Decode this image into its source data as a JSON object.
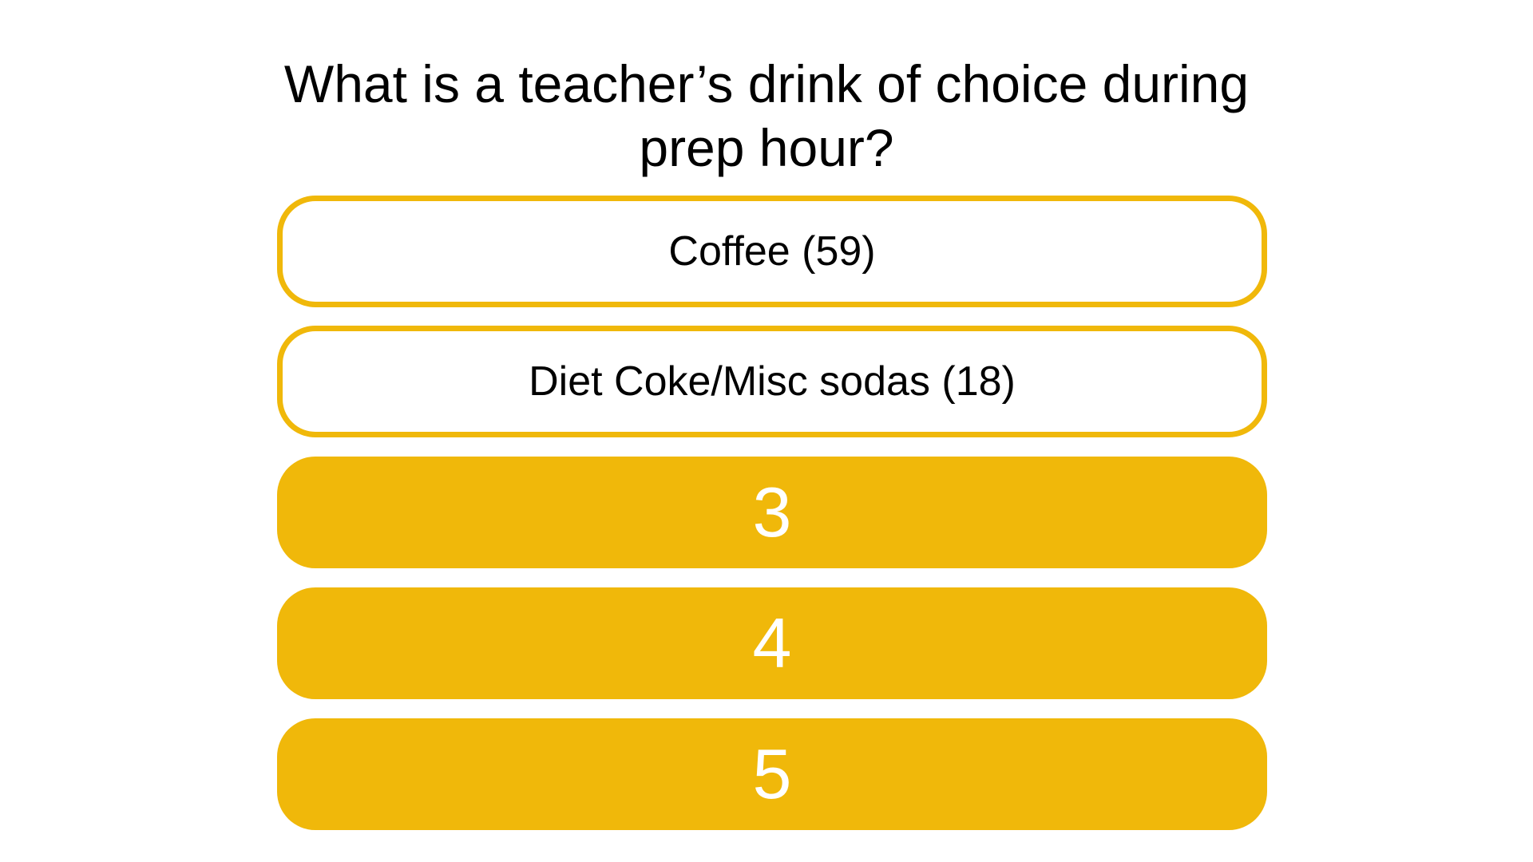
{
  "question": "What is a teacher’s drink of choice during prep hour?",
  "answers": [
    {
      "label": "Coffee (59)",
      "state": "revealed"
    },
    {
      "label": "Diet Coke/Misc sodas (18)",
      "state": "revealed"
    },
    {
      "label": "3",
      "state": "hidden"
    },
    {
      "label": "4",
      "state": "hidden"
    },
    {
      "label": "5",
      "state": "hidden"
    }
  ],
  "colors": {
    "accent": "#F0B80A",
    "background": "#ffffff",
    "text": "#000000",
    "hidden_text": "#ffffff"
  }
}
